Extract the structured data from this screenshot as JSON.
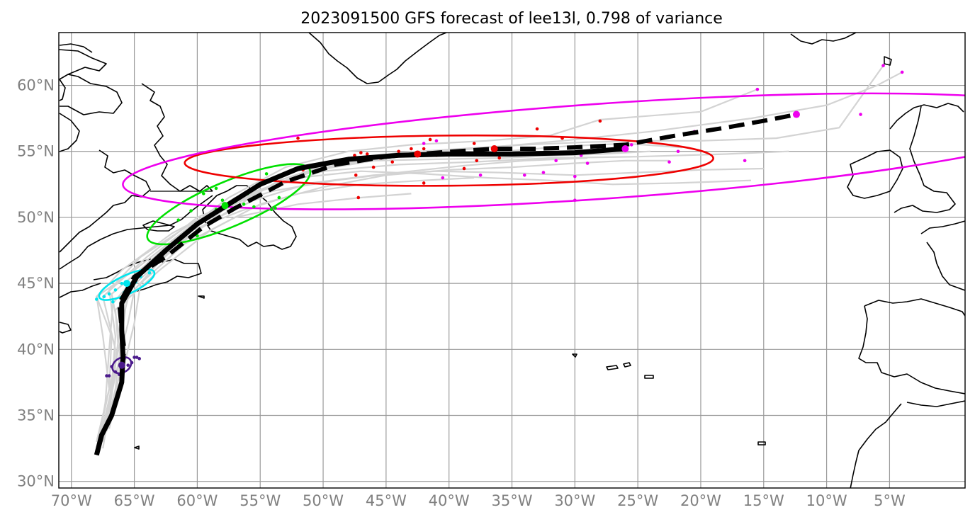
{
  "chart_data": {
    "type": "map-track",
    "title": "2023091500 GFS forecast of lee13l, 0.798 of variance",
    "projection": "equirectangular",
    "lon_range": [
      -71,
      1
    ],
    "lat_range": [
      29.5,
      64
    ],
    "x_ticks": [
      {
        "lon": -70,
        "label": "70°W"
      },
      {
        "lon": -65,
        "label": "65°W"
      },
      {
        "lon": -60,
        "label": "60°W"
      },
      {
        "lon": -55,
        "label": "55°W"
      },
      {
        "lon": -50,
        "label": "50°W"
      },
      {
        "lon": -45,
        "label": "45°W"
      },
      {
        "lon": -40,
        "label": "40°W"
      },
      {
        "lon": -35,
        "label": "35°W"
      },
      {
        "lon": -30,
        "label": "30°W"
      },
      {
        "lon": -25,
        "label": "25°W"
      },
      {
        "lon": -20,
        "label": "20°W"
      },
      {
        "lon": -15,
        "label": "15°W"
      },
      {
        "lon": -10,
        "label": "10°W"
      },
      {
        "lon": -5,
        "label": "5°W"
      }
    ],
    "y_ticks": [
      {
        "lat": 30,
        "label": "30°N"
      },
      {
        "lat": 35,
        "label": "35°N"
      },
      {
        "lat": 40,
        "label": "40°N"
      },
      {
        "lat": 45,
        "label": "45°N"
      },
      {
        "lat": 50,
        "label": "50°N"
      },
      {
        "lat": 55,
        "label": "55°N"
      },
      {
        "lat": 60,
        "label": "60°N"
      }
    ],
    "colors": {
      "mean_track": "#000000",
      "ensemble": "#d3d3d3",
      "grid": "#9a9a9a",
      "coast": "#000000",
      "t1": "#4b1a8c",
      "t2": "#00e5ee",
      "t3": "#00e000",
      "t4": "#ee0000",
      "t5": "#ee00ee"
    },
    "mean_track_solid": [
      [
        -68.0,
        32.0
      ],
      [
        -67.6,
        33.5
      ],
      [
        -66.8,
        35.0
      ],
      [
        -66.0,
        37.5
      ],
      [
        -65.9,
        39.5
      ],
      [
        -66.0,
        41.5
      ],
      [
        -66.0,
        43.5
      ],
      [
        -64.8,
        45.5
      ],
      [
        -62.5,
        47.5
      ],
      [
        -60.0,
        49.5
      ],
      [
        -57.5,
        51.0
      ],
      [
        -55.0,
        52.5
      ],
      [
        -52.0,
        53.7
      ],
      [
        -48.0,
        54.4
      ],
      [
        -44.0,
        54.7
      ],
      [
        -40.0,
        54.8
      ],
      [
        -35.0,
        54.8
      ],
      [
        -30.0,
        54.9
      ],
      [
        -26.0,
        55.2
      ]
    ],
    "mean_track_dashed": [
      [
        -66.0,
        38.5
      ],
      [
        -65.8,
        40.0
      ],
      [
        -66.0,
        41.5
      ],
      [
        -66.2,
        43.5
      ],
      [
        -65.0,
        45.5
      ],
      [
        -62.5,
        47.0
      ],
      [
        -59.5,
        49.3
      ],
      [
        -57.0,
        50.7
      ],
      [
        -53.0,
        52.7
      ],
      [
        -49.0,
        54.0
      ],
      [
        -45.0,
        54.6
      ],
      [
        -42.5,
        54.8
      ],
      [
        -38.0,
        55.1
      ],
      [
        -36.4,
        55.2
      ],
      [
        -33.0,
        55.2
      ],
      [
        -30.0,
        55.3
      ],
      [
        -26.0,
        55.5
      ],
      [
        -22.0,
        56.2
      ],
      [
        -18.0,
        56.8
      ],
      [
        -14.5,
        57.4
      ],
      [
        -12.4,
        57.8
      ]
    ],
    "ensemble_tracks": [
      [
        [
          -68,
          32
        ],
        [
          -67,
          36
        ],
        [
          -66.5,
          40
        ],
        [
          -67.5,
          44
        ],
        [
          -64,
          47
        ],
        [
          -60,
          50
        ],
        [
          -55,
          52
        ],
        [
          -50,
          53.5
        ],
        [
          -44,
          54
        ],
        [
          -38,
          54.2
        ],
        [
          -32,
          54.5
        ],
        [
          -25,
          54.6
        ],
        [
          -18,
          54.8
        ],
        [
          -13,
          55
        ]
      ],
      [
        [
          -67.5,
          33
        ],
        [
          -66.5,
          37
        ],
        [
          -66,
          41
        ],
        [
          -65.5,
          44.5
        ],
        [
          -62,
          47.5
        ],
        [
          -58,
          50.5
        ],
        [
          -54,
          52.5
        ],
        [
          -49,
          54
        ],
        [
          -43,
          54.8
        ],
        [
          -38,
          55.2
        ],
        [
          -31,
          55.8
        ],
        [
          -24,
          56.5
        ],
        [
          -16,
          57.5
        ],
        [
          -10,
          58.5
        ],
        [
          -6,
          60
        ],
        [
          -4,
          61
        ]
      ],
      [
        [
          -68,
          33
        ],
        [
          -67,
          37
        ],
        [
          -67.5,
          41
        ],
        [
          -68,
          44
        ],
        [
          -65,
          46
        ],
        [
          -61,
          49
        ],
        [
          -57,
          51.5
        ],
        [
          -52,
          53
        ],
        [
          -47,
          53.5
        ],
        [
          -42,
          53.3
        ],
        [
          -37,
          53
        ],
        [
          -32,
          52.8
        ],
        [
          -27,
          52.5
        ],
        [
          -22,
          52.6
        ],
        [
          -16,
          52.8
        ]
      ],
      [
        [
          -67,
          34
        ],
        [
          -66,
          38
        ],
        [
          -65,
          42
        ],
        [
          -64.5,
          45
        ],
        [
          -61,
          48
        ],
        [
          -57,
          50
        ],
        [
          -52,
          51
        ],
        [
          -47,
          51.5
        ],
        [
          -43,
          51.8
        ]
      ],
      [
        [
          -67.5,
          32.5
        ],
        [
          -66.8,
          36.5
        ],
        [
          -66.3,
          40.5
        ],
        [
          -66.5,
          43
        ],
        [
          -63,
          46
        ],
        [
          -59,
          49
        ],
        [
          -55,
          51
        ],
        [
          -50,
          52.3
        ],
        [
          -45,
          53.2
        ],
        [
          -40,
          53.6
        ],
        [
          -35,
          53.8
        ],
        [
          -30,
          54.1
        ],
        [
          -26,
          54.3
        ],
        [
          -22.5,
          54.3
        ]
      ],
      [
        [
          -68,
          33
        ],
        [
          -67,
          37
        ],
        [
          -66,
          41
        ],
        [
          -66,
          44
        ],
        [
          -64,
          46.5
        ],
        [
          -61,
          49
        ],
        [
          -57.5,
          51.5
        ],
        [
          -53,
          53.8
        ],
        [
          -48,
          55
        ],
        [
          -43,
          55.5
        ],
        [
          -37,
          55.8
        ],
        [
          -32,
          56.2
        ],
        [
          -28,
          57.4
        ],
        [
          -20,
          58
        ],
        [
          -15.5,
          59.7
        ]
      ],
      [
        [
          -67.8,
          33
        ],
        [
          -66.8,
          37
        ],
        [
          -66.5,
          41
        ],
        [
          -67,
          44.5
        ],
        [
          -64.5,
          47
        ],
        [
          -60.5,
          49.5
        ],
        [
          -56,
          51.7
        ],
        [
          -51,
          53.5
        ],
        [
          -46,
          54.3
        ],
        [
          -41,
          54.4
        ],
        [
          -36,
          54.5
        ],
        [
          -31,
          54.7
        ],
        [
          -28,
          54.8
        ],
        [
          -24,
          55
        ]
      ],
      [
        [
          -67.5,
          33.5
        ],
        [
          -66.5,
          38
        ],
        [
          -65.5,
          42
        ],
        [
          -65,
          44.5
        ],
        [
          -62.5,
          47.2
        ],
        [
          -59,
          49.7
        ],
        [
          -55.5,
          51.3
        ],
        [
          -51,
          52.6
        ],
        [
          -46,
          53.2
        ],
        [
          -41,
          53.5
        ],
        [
          -36,
          53.4
        ],
        [
          -30,
          53.2
        ],
        [
          -25,
          53.4
        ],
        [
          -20,
          53.6
        ],
        [
          -15,
          53.7
        ]
      ],
      [
        [
          -68,
          32.5
        ],
        [
          -67,
          37
        ],
        [
          -66.8,
          41
        ],
        [
          -68,
          44
        ],
        [
          -66,
          46
        ],
        [
          -62,
          48.8
        ],
        [
          -58,
          50.8
        ],
        [
          -54,
          52
        ],
        [
          -49,
          52.8
        ],
        [
          -44,
          53.4
        ],
        [
          -39,
          53.9
        ],
        [
          -34,
          54.3
        ],
        [
          -29,
          54.5
        ]
      ],
      [
        [
          -67.2,
          33.8
        ],
        [
          -66.2,
          38
        ],
        [
          -66,
          42
        ],
        [
          -65.2,
          45
        ],
        [
          -62,
          47.8
        ],
        [
          -58,
          50.2
        ],
        [
          -53.5,
          52.8
        ],
        [
          -49,
          54.2
        ],
        [
          -44,
          54.9
        ],
        [
          -39,
          55.2
        ],
        [
          -34,
          55.5
        ],
        [
          -29,
          55.7
        ],
        [
          -24,
          55.8
        ],
        [
          -20,
          55.8
        ],
        [
          -14,
          56
        ],
        [
          -9,
          56.8
        ],
        [
          -5.5,
          61.5
        ]
      ],
      [
        [
          -68,
          32
        ],
        [
          -67.3,
          36
        ],
        [
          -67,
          40
        ],
        [
          -66.7,
          43.5
        ],
        [
          -64,
          46.5
        ],
        [
          -60.5,
          49
        ],
        [
          -56.5,
          50.5
        ],
        [
          -52,
          51.8
        ],
        [
          -47,
          52.5
        ],
        [
          -42,
          52.8
        ],
        [
          -38,
          53
        ]
      ],
      [
        [
          -67.6,
          33.2
        ],
        [
          -66.7,
          37.2
        ],
        [
          -66.2,
          41.2
        ],
        [
          -66.8,
          44.2
        ],
        [
          -63.6,
          46.8
        ],
        [
          -59.6,
          49.6
        ],
        [
          -55.6,
          51.9
        ],
        [
          -50.6,
          53.6
        ],
        [
          -45.6,
          54.5
        ],
        [
          -40.6,
          54.8
        ],
        [
          -35.6,
          55
        ],
        [
          -30.6,
          55.4
        ],
        [
          -26,
          55.6
        ],
        [
          -21.5,
          55.3
        ]
      ]
    ],
    "ellipses": [
      {
        "color_key": "t1",
        "center": [
          -66.0,
          38.8
        ],
        "rx_deg": 0.8,
        "ry_deg": 0.55,
        "rotation": -30
      },
      {
        "color_key": "t2",
        "center": [
          -65.6,
          44.9
        ],
        "rx_deg": 2.4,
        "ry_deg": 0.7,
        "rotation": -25
      },
      {
        "color_key": "t3",
        "center": [
          -57.5,
          51.0
        ],
        "rx_deg": 7.0,
        "ry_deg": 1.7,
        "rotation": -23
      },
      {
        "color_key": "t4",
        "center": [
          -40.0,
          54.3
        ],
        "rx_deg": 21.0,
        "ry_deg": 1.9,
        "rotation": -0.5
      },
      {
        "color_key": "t5",
        "center": [
          -28.0,
          55.0
        ],
        "rx_deg": 38.0,
        "ry_deg": 3.6,
        "rotation": -4
      }
    ],
    "forecast_markers": [
      {
        "color_key": "t1",
        "lon": -66.0,
        "lat": 38.8
      },
      {
        "color_key": "t2",
        "lon": -65.6,
        "lat": 45.0
      },
      {
        "color_key": "t3",
        "lon": -57.8,
        "lat": 50.9
      },
      {
        "color_key": "t4",
        "lon": -42.5,
        "lat": 54.8
      },
      {
        "color_key": "t4",
        "lon": -36.4,
        "lat": 55.2
      },
      {
        "color_key": "t5",
        "lon": -26.0,
        "lat": 55.2
      },
      {
        "color_key": "t5",
        "lon": -12.4,
        "lat": 57.8
      }
    ],
    "member_points": [
      {
        "color_key": "t1",
        "pts": [
          [
            -67,
            38
          ],
          [
            -66.5,
            38.3
          ],
          [
            -65.5,
            38.8
          ],
          [
            -65,
            39.4
          ],
          [
            -64.6,
            39.3
          ],
          [
            -66.8,
            38.7
          ],
          [
            -65.2,
            39.0
          ],
          [
            -66.2,
            38.1
          ],
          [
            -67.2,
            38.0
          ],
          [
            -65.8,
            39.3
          ],
          [
            -64.8,
            39.4
          ]
        ]
      },
      {
        "color_key": "t2",
        "pts": [
          [
            -68,
            43.8
          ],
          [
            -67,
            44.2
          ],
          [
            -66.5,
            44.5
          ],
          [
            -66,
            45
          ],
          [
            -65,
            45.3
          ],
          [
            -64.5,
            45.5
          ],
          [
            -63.8,
            45.8
          ],
          [
            -67.4,
            44.0
          ],
          [
            -65.8,
            44.3
          ],
          [
            -64.9,
            45.1
          ],
          [
            -66.7,
            43.6
          ]
        ]
      },
      {
        "color_key": "t3",
        "pts": [
          [
            -59.5,
            51.8
          ],
          [
            -58.5,
            52.2
          ],
          [
            -56,
            51.8
          ],
          [
            -54.5,
            53.3
          ],
          [
            -60.5,
            50.5
          ],
          [
            -61.5,
            49.8
          ],
          [
            -55.5,
            50.8
          ],
          [
            -57,
            51.2
          ],
          [
            -53.8,
            50.7
          ],
          [
            -53.5,
            51.5
          ],
          [
            -58.5,
            50.6
          ],
          [
            -60,
            48.6
          ],
          [
            -56.3,
            51.0
          ],
          [
            -54.1,
            50.6
          ],
          [
            -58.0,
            51.3
          ]
        ]
      },
      {
        "color_key": "t4",
        "pts": [
          [
            -52,
            56
          ],
          [
            -47.5,
            54.7
          ],
          [
            -47,
            54.9
          ],
          [
            -46.5,
            54.8
          ],
          [
            -45.5,
            54.5
          ],
          [
            -44,
            55
          ],
          [
            -43,
            55.2
          ],
          [
            -42,
            55.2
          ],
          [
            -41.5,
            55.9
          ],
          [
            -41,
            54.7
          ],
          [
            -38,
            55.6
          ],
          [
            -37.8,
            54.3
          ],
          [
            -36,
            54.5
          ],
          [
            -33,
            56.7
          ],
          [
            -31,
            56
          ],
          [
            -28,
            57.3
          ],
          [
            -47.4,
            53.2
          ],
          [
            -47.2,
            51.5
          ],
          [
            -46,
            53.8
          ],
          [
            -42,
            52.6
          ],
          [
            -38.8,
            53.7
          ],
          [
            -51.6,
            53.6
          ],
          [
            -44.5,
            54.2
          ]
        ]
      },
      {
        "color_key": "t5",
        "pts": [
          [
            -41,
            55.8
          ],
          [
            -42,
            55.6
          ],
          [
            -40.5,
            53
          ],
          [
            -37.5,
            53.2
          ],
          [
            -34,
            53.2
          ],
          [
            -32.5,
            53.4
          ],
          [
            -31.5,
            54.3
          ],
          [
            -30,
            53.1
          ],
          [
            -29.5,
            54.7
          ],
          [
            -29,
            54.1
          ],
          [
            -25.5,
            55.5
          ],
          [
            -22.5,
            54.2
          ],
          [
            -21.8,
            55
          ],
          [
            -20.5,
            56.5
          ],
          [
            -30,
            51.3
          ],
          [
            -16.5,
            54.3
          ],
          [
            -15.5,
            59.7
          ],
          [
            -5.5,
            61.5
          ],
          [
            -4,
            61
          ],
          [
            -7.3,
            57.8
          ]
        ]
      }
    ],
    "annotations": []
  }
}
